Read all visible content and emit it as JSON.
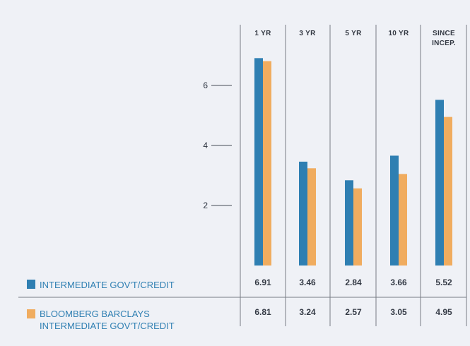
{
  "chart_data": {
    "type": "bar",
    "categories": [
      "1 YR",
      "3 YR",
      "5 YR",
      "10 YR",
      "SINCE INCEP."
    ],
    "category_lines": [
      [
        "1 YR"
      ],
      [
        "3 YR"
      ],
      [
        "5 YR"
      ],
      [
        "10 YR"
      ],
      [
        "SINCE",
        "INCEP."
      ]
    ],
    "y_ticks": [
      2,
      4,
      6
    ],
    "ylim": [
      0,
      7.2
    ],
    "grid": false,
    "legend_placement": "bottom-left",
    "series": [
      {
        "name": "INTERMEDIATE GOV'T/CREDIT",
        "name_lines": [
          "INTERMEDIATE GOV'T/CREDIT"
        ],
        "values": [
          6.91,
          3.46,
          2.84,
          3.66,
          5.52
        ],
        "display_values": [
          "6.91",
          "3.46",
          "2.84",
          "3.66",
          "5.52"
        ],
        "color": "#2f7fb2"
      },
      {
        "name": "BLOOMBERG BARCLAYS INTERMEDIATE GOV'T/CREDIT",
        "name_lines": [
          "BLOOMBERG BARCLAYS",
          "INTERMEDIATE GOV'T/CREDIT"
        ],
        "values": [
          6.81,
          3.24,
          2.57,
          3.05,
          4.95
        ],
        "display_values": [
          "6.81",
          "3.24",
          "2.57",
          "3.05",
          "4.95"
        ],
        "color": "#f0ac5f"
      }
    ],
    "colors": {
      "background": "#eff1f6",
      "text": "#343a45",
      "legend_text": "#2f7fb2",
      "separator": "#777c84"
    }
  }
}
